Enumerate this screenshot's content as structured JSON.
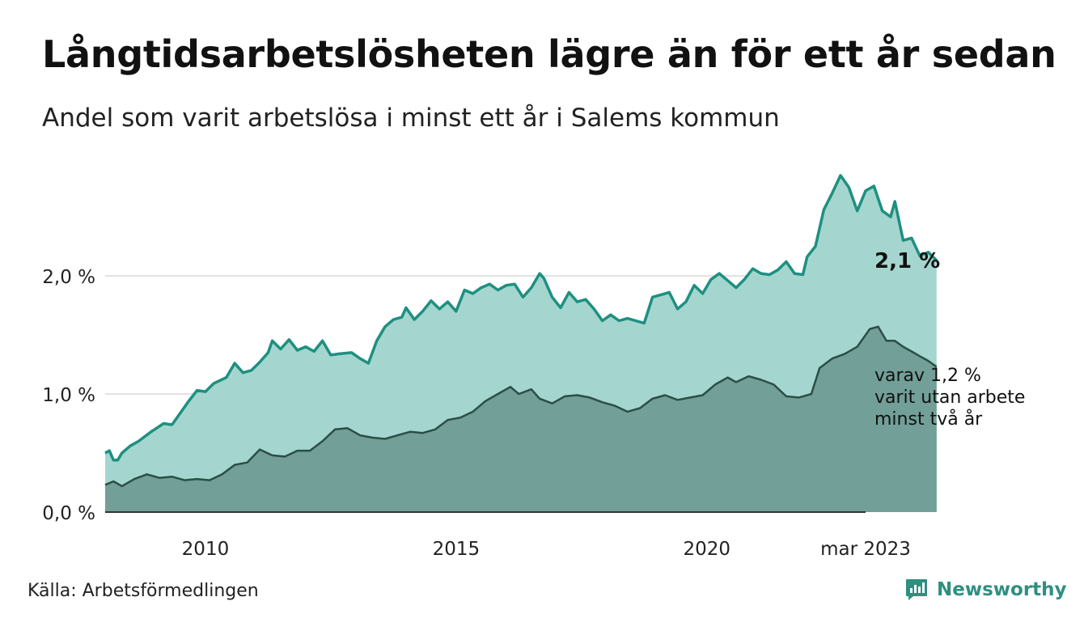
{
  "title": "Långtidsarbetslösheten lägre än för ett år sedan",
  "subtitle": "Andel som varit arbetslösa i minst ett år i Salems kommun",
  "source": "Källa: Arbetsförmedlingen",
  "brand": {
    "name": "Newsworthy",
    "icon": "bar-chart-speech-bubble-icon",
    "color": "#2f8f80"
  },
  "colors": {
    "long_term_line": "#1e9080",
    "long_term_fill": "#a4d6cf",
    "very_long_term_line": "#2a4f47",
    "very_long_term_fill": "#729f98",
    "grid": "#e2e2e2"
  },
  "chart_data": {
    "type": "area",
    "title": "Långtidsarbetslösheten lägre än för ett år sedan",
    "subtitle": "Andel som varit arbetslösa i minst ett år i Salems kommun",
    "x_start": "2008-01",
    "x_end": "2023-03",
    "x_ticks": [
      {
        "label": "2010",
        "date": "2010-01"
      },
      {
        "label": "2015",
        "date": "2015-01"
      },
      {
        "label": "2020",
        "date": "2020-01"
      },
      {
        "label": "mar 2023",
        "date": "2023-03"
      }
    ],
    "y_ticks": [
      {
        "label": "0,0 %",
        "value": 0
      },
      {
        "label": "1,0 %",
        "value": 1
      },
      {
        "label": "2,0 %",
        "value": 2
      }
    ],
    "ylim": [
      0,
      3
    ],
    "grid": true,
    "series": [
      {
        "label": "2,1 %",
        "points": [
          [
            "2008-01",
            0.5
          ],
          [
            "2008-02",
            0.52
          ],
          [
            "2008-03",
            0.44
          ],
          [
            "2008-04",
            0.44
          ],
          [
            "2008-05",
            0.5
          ],
          [
            "2008-07",
            0.56
          ],
          [
            "2008-09",
            0.6
          ],
          [
            "2008-12",
            0.68
          ],
          [
            "2009-03",
            0.75
          ],
          [
            "2009-05",
            0.74
          ],
          [
            "2009-07",
            0.84
          ],
          [
            "2009-09",
            0.94
          ],
          [
            "2009-11",
            1.03
          ],
          [
            "2010-01",
            1.02
          ],
          [
            "2010-03",
            1.09
          ],
          [
            "2010-06",
            1.14
          ],
          [
            "2010-08",
            1.26
          ],
          [
            "2010-10",
            1.18
          ],
          [
            "2010-12",
            1.2
          ],
          [
            "2011-02",
            1.27
          ],
          [
            "2011-04",
            1.35
          ],
          [
            "2011-05",
            1.45
          ],
          [
            "2011-07",
            1.38
          ],
          [
            "2011-09",
            1.46
          ],
          [
            "2011-11",
            1.37
          ],
          [
            "2012-01",
            1.4
          ],
          [
            "2012-03",
            1.36
          ],
          [
            "2012-05",
            1.45
          ],
          [
            "2012-07",
            1.33
          ],
          [
            "2012-09",
            1.34
          ],
          [
            "2012-12",
            1.35
          ],
          [
            "2013-02",
            1.3
          ],
          [
            "2013-04",
            1.26
          ],
          [
            "2013-06",
            1.45
          ],
          [
            "2013-08",
            1.57
          ],
          [
            "2013-10",
            1.63
          ],
          [
            "2013-12",
            1.65
          ],
          [
            "2014-01",
            1.73
          ],
          [
            "2014-03",
            1.63
          ],
          [
            "2014-05",
            1.7
          ],
          [
            "2014-07",
            1.79
          ],
          [
            "2014-09",
            1.72
          ],
          [
            "2014-11",
            1.78
          ],
          [
            "2015-01",
            1.7
          ],
          [
            "2015-03",
            1.88
          ],
          [
            "2015-05",
            1.85
          ],
          [
            "2015-07",
            1.9
          ],
          [
            "2015-09",
            1.93
          ],
          [
            "2015-11",
            1.88
          ],
          [
            "2016-01",
            1.92
          ],
          [
            "2016-03",
            1.93
          ],
          [
            "2016-05",
            1.82
          ],
          [
            "2016-07",
            1.9
          ],
          [
            "2016-09",
            2.02
          ],
          [
            "2016-10",
            1.98
          ],
          [
            "2016-12",
            1.82
          ],
          [
            "2017-02",
            1.73
          ],
          [
            "2017-04",
            1.86
          ],
          [
            "2017-06",
            1.78
          ],
          [
            "2017-08",
            1.8
          ],
          [
            "2017-10",
            1.72
          ],
          [
            "2017-12",
            1.62
          ],
          [
            "2018-02",
            1.67
          ],
          [
            "2018-04",
            1.62
          ],
          [
            "2018-06",
            1.64
          ],
          [
            "2018-08",
            1.62
          ],
          [
            "2018-10",
            1.6
          ],
          [
            "2018-12",
            1.82
          ],
          [
            "2019-02",
            1.84
          ],
          [
            "2019-04",
            1.86
          ],
          [
            "2019-06",
            1.72
          ],
          [
            "2019-08",
            1.78
          ],
          [
            "2019-10",
            1.92
          ],
          [
            "2019-12",
            1.85
          ],
          [
            "2020-02",
            1.97
          ],
          [
            "2020-04",
            2.02
          ],
          [
            "2020-06",
            1.96
          ],
          [
            "2020-08",
            1.9
          ],
          [
            "2020-10",
            1.97
          ],
          [
            "2020-12",
            2.06
          ],
          [
            "2021-02",
            2.02
          ],
          [
            "2021-04",
            2.01
          ],
          [
            "2021-06",
            2.05
          ],
          [
            "2021-08",
            2.12
          ],
          [
            "2021-10",
            2.02
          ],
          [
            "2021-12",
            2.01
          ],
          [
            "2022-01",
            2.16
          ],
          [
            "2022-03",
            2.25
          ],
          [
            "2022-05",
            2.56
          ],
          [
            "2022-07",
            2.7
          ],
          [
            "2022-09",
            2.85
          ],
          [
            "2022-11",
            2.75
          ],
          [
            "2023-01",
            2.55
          ],
          [
            "2023-03",
            2.72
          ],
          [
            "2023-05",
            2.76
          ],
          [
            "2023-07",
            2.55
          ],
          [
            "2023-09",
            2.5
          ],
          [
            "2023-10",
            2.63
          ],
          [
            "2023-12",
            2.3
          ],
          [
            "2024-02",
            2.32
          ],
          [
            "2024-04",
            2.17
          ],
          [
            "2024-06",
            2.2
          ],
          [
            "2024-08",
            2.13
          ]
        ]
      },
      {
        "label": "varav 1,2 %\nvarit utan arbete\nminst två år",
        "points": [
          [
            "2008-01",
            0.23
          ],
          [
            "2008-03",
            0.26
          ],
          [
            "2008-05",
            0.22
          ],
          [
            "2008-08",
            0.28
          ],
          [
            "2008-11",
            0.32
          ],
          [
            "2009-02",
            0.29
          ],
          [
            "2009-05",
            0.3
          ],
          [
            "2009-08",
            0.27
          ],
          [
            "2009-11",
            0.28
          ],
          [
            "2010-02",
            0.27
          ],
          [
            "2010-05",
            0.32
          ],
          [
            "2010-08",
            0.4
          ],
          [
            "2010-11",
            0.42
          ],
          [
            "2011-02",
            0.53
          ],
          [
            "2011-05",
            0.48
          ],
          [
            "2011-08",
            0.47
          ],
          [
            "2011-11",
            0.52
          ],
          [
            "2012-02",
            0.52
          ],
          [
            "2012-05",
            0.6
          ],
          [
            "2012-08",
            0.7
          ],
          [
            "2012-11",
            0.71
          ],
          [
            "2013-02",
            0.65
          ],
          [
            "2013-05",
            0.63
          ],
          [
            "2013-08",
            0.62
          ],
          [
            "2013-11",
            0.65
          ],
          [
            "2014-02",
            0.68
          ],
          [
            "2014-05",
            0.67
          ],
          [
            "2014-08",
            0.7
          ],
          [
            "2014-11",
            0.78
          ],
          [
            "2015-02",
            0.8
          ],
          [
            "2015-05",
            0.85
          ],
          [
            "2015-08",
            0.94
          ],
          [
            "2015-11",
            1.0
          ],
          [
            "2016-02",
            1.06
          ],
          [
            "2016-04",
            1.0
          ],
          [
            "2016-07",
            1.04
          ],
          [
            "2016-09",
            0.96
          ],
          [
            "2016-12",
            0.92
          ],
          [
            "2017-03",
            0.98
          ],
          [
            "2017-06",
            0.99
          ],
          [
            "2017-09",
            0.97
          ],
          [
            "2017-12",
            0.93
          ],
          [
            "2018-03",
            0.9
          ],
          [
            "2018-06",
            0.85
          ],
          [
            "2018-09",
            0.88
          ],
          [
            "2018-12",
            0.96
          ],
          [
            "2019-03",
            0.99
          ],
          [
            "2019-06",
            0.95
          ],
          [
            "2019-09",
            0.97
          ],
          [
            "2019-12",
            0.99
          ],
          [
            "2020-03",
            1.08
          ],
          [
            "2020-06",
            1.14
          ],
          [
            "2020-08",
            1.1
          ],
          [
            "2020-11",
            1.15
          ],
          [
            "2021-02",
            1.12
          ],
          [
            "2021-05",
            1.08
          ],
          [
            "2021-08",
            0.98
          ],
          [
            "2021-11",
            0.97
          ],
          [
            "2022-02",
            1.0
          ],
          [
            "2022-04",
            1.22
          ],
          [
            "2022-07",
            1.3
          ],
          [
            "2022-10",
            1.34
          ],
          [
            "2023-01",
            1.4
          ],
          [
            "2023-04",
            1.55
          ],
          [
            "2023-06",
            1.57
          ],
          [
            "2023-08",
            1.45
          ],
          [
            "2023-10",
            1.45
          ],
          [
            "2023-12",
            1.4
          ],
          [
            "2024-02",
            1.36
          ],
          [
            "2024-04",
            1.32
          ],
          [
            "2024-06",
            1.28
          ],
          [
            "2024-08",
            1.23
          ]
        ]
      }
    ]
  }
}
